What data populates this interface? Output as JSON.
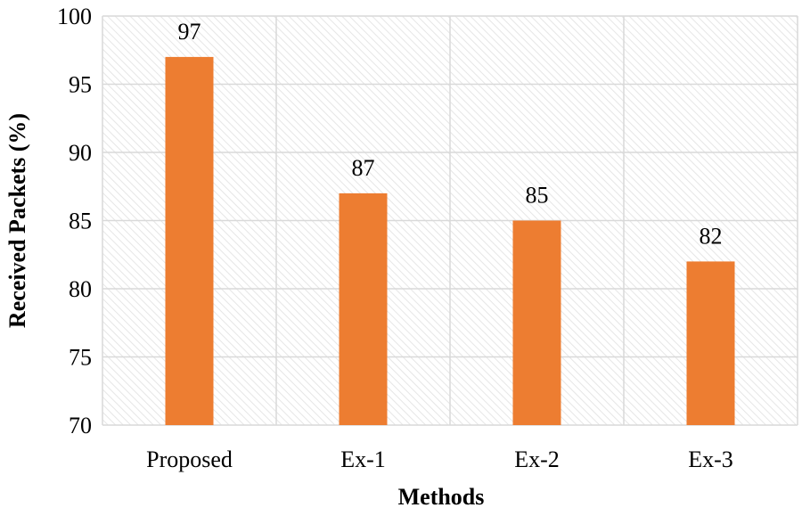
{
  "chart_data": {
    "type": "bar",
    "categories": [
      "Proposed",
      "Ex-1",
      "Ex-2",
      "Ex-3"
    ],
    "series": [
      {
        "values": [
          97,
          87,
          85,
          82
        ]
      }
    ],
    "data_labels": [
      "97",
      "87",
      "85",
      "82"
    ],
    "title": "",
    "xlabel": "Methods",
    "ylabel": "Received Packets (%)",
    "ylim": [
      70,
      100
    ],
    "yticks": [
      70,
      75,
      80,
      85,
      90,
      95,
      100
    ],
    "ytick_labels": [
      "70",
      "75",
      "80",
      "85",
      "90",
      "95",
      "100"
    ],
    "grid": true,
    "legend": "none",
    "colors": {
      "bar": "#ED7D31",
      "grid": "#D9D9D9",
      "plot_background_hatch": "#E6E6E6"
    }
  }
}
